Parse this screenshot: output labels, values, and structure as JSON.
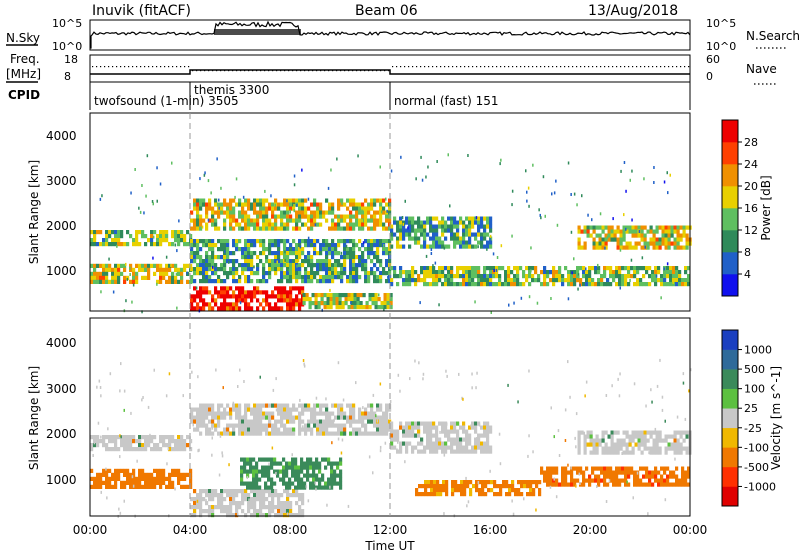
{
  "header": {
    "station": "Inuvik (fitACF)",
    "beam": "Beam 06",
    "date": "13/Aug/2018"
  },
  "top_panels": {
    "nsky_label": "N.Sky",
    "nsky_ticks": [
      "10^5",
      "10^0"
    ],
    "nsearch_label": "N.Search",
    "nsearch_ticks": [
      "10^5",
      "10^0"
    ],
    "freq_label_1": "Freq.",
    "freq_label_2": "[MHz]",
    "freq_ticks": [
      "18",
      "8"
    ],
    "nave_label": "Nave",
    "nave_ticks": [
      "60",
      "0"
    ],
    "cpid_label": "CPID"
  },
  "cpid_segments": [
    {
      "label": "twofsound (1-min) 3505",
      "start_hour": 0,
      "end_hour": 4
    },
    {
      "label": "themis 3300",
      "start_hour": 4,
      "end_hour": 12
    },
    {
      "label": "normal (fast) 151",
      "start_hour": 12,
      "end_hour": 24
    }
  ],
  "chart_data": [
    {
      "type": "heatmap",
      "panel": "power",
      "ylabel": "Slant Range [km]",
      "ylim": [
        200,
        4600
      ],
      "xlim": [
        0,
        24
      ],
      "yticks": [
        "1000",
        "2000",
        "3000",
        "4000"
      ],
      "colorbar": {
        "label": "Power [dB]",
        "ticks": [
          "4",
          "8",
          "12",
          "16",
          "20",
          "24",
          "28"
        ],
        "colors": [
          "#1010ee",
          "#2060c8",
          "#2f8a5a",
          "#5fbf60",
          "#e8d000",
          "#f09000",
          "#ff4000",
          "#ee0000"
        ]
      },
      "bands": [
        {
          "t0": 0.0,
          "t1": 4.0,
          "r0": 1650,
          "r1": 2000,
          "level": 0.45
        },
        {
          "t0": 0.0,
          "t1": 4.0,
          "r0": 850,
          "r1": 1250,
          "level": 0.55
        },
        {
          "t0": 4.0,
          "t1": 12.0,
          "r0": 2000,
          "r1": 2700,
          "level": 0.55
        },
        {
          "t0": 4.0,
          "t1": 12.0,
          "r0": 900,
          "r1": 1800,
          "level": 0.35
        },
        {
          "t0": 4.0,
          "t1": 8.5,
          "r0": 250,
          "r1": 750,
          "level": 0.95
        },
        {
          "t0": 8.5,
          "t1": 12.0,
          "r0": 250,
          "r1": 600,
          "level": 0.5
        },
        {
          "t0": 12.0,
          "t1": 16.0,
          "r0": 1600,
          "r1": 2300,
          "level": 0.35
        },
        {
          "t0": 12.0,
          "t1": 24.0,
          "r0": 800,
          "r1": 1200,
          "level": 0.45
        },
        {
          "t0": 19.5,
          "t1": 24.0,
          "r0": 1600,
          "r1": 2100,
          "level": 0.55
        }
      ]
    },
    {
      "type": "heatmap",
      "panel": "velocity",
      "xlabel": "Time UT",
      "ylabel": "Slant Range [km]",
      "ylim": [
        200,
        4600
      ],
      "xlim": [
        0,
        24
      ],
      "yticks": [
        "1000",
        "2000",
        "3000",
        "4000"
      ],
      "xticks": [
        "00:00",
        "04:00",
        "08:00",
        "12:00",
        "16:00",
        "20:00",
        "00:00"
      ],
      "colorbar": {
        "label": "Velocity [m s^-1]",
        "ticks": [
          "1000",
          "500",
          "100",
          "25",
          "-25",
          "-100",
          "-500",
          "-1000"
        ],
        "colors": [
          "#1a3fc0",
          "#2f6a9a",
          "#3a8a5a",
          "#5cc040",
          "#c8c8c8",
          "#f0b800",
          "#f07800",
          "#ff3000",
          "#e00000"
        ]
      },
      "bands": [
        {
          "t0": 0.0,
          "t1": 4.0,
          "r0": 1650,
          "r1": 2000,
          "vel": 0
        },
        {
          "t0": 0.0,
          "t1": 4.0,
          "r0": 850,
          "r1": 1250,
          "vel": -300
        },
        {
          "t0": 4.0,
          "t1": 12.0,
          "r0": 2000,
          "r1": 2700,
          "vel": 0
        },
        {
          "t0": 4.0,
          "t1": 8.5,
          "r0": 250,
          "r1": 800,
          "vel": 0
        },
        {
          "t0": 6.0,
          "t1": 10.0,
          "r0": 800,
          "r1": 1500,
          "vel": 150
        },
        {
          "t0": 12.0,
          "t1": 16.0,
          "r0": 1600,
          "r1": 2300,
          "vel": 0
        },
        {
          "t0": 13.0,
          "t1": 18.0,
          "r0": 700,
          "r1": 1000,
          "vel": -200
        },
        {
          "t0": 18.0,
          "t1": 24.0,
          "r0": 900,
          "r1": 1300,
          "vel": -400
        },
        {
          "t0": 19.5,
          "t1": 24.0,
          "r0": 1600,
          "r1": 2100,
          "vel": 0
        }
      ]
    }
  ]
}
